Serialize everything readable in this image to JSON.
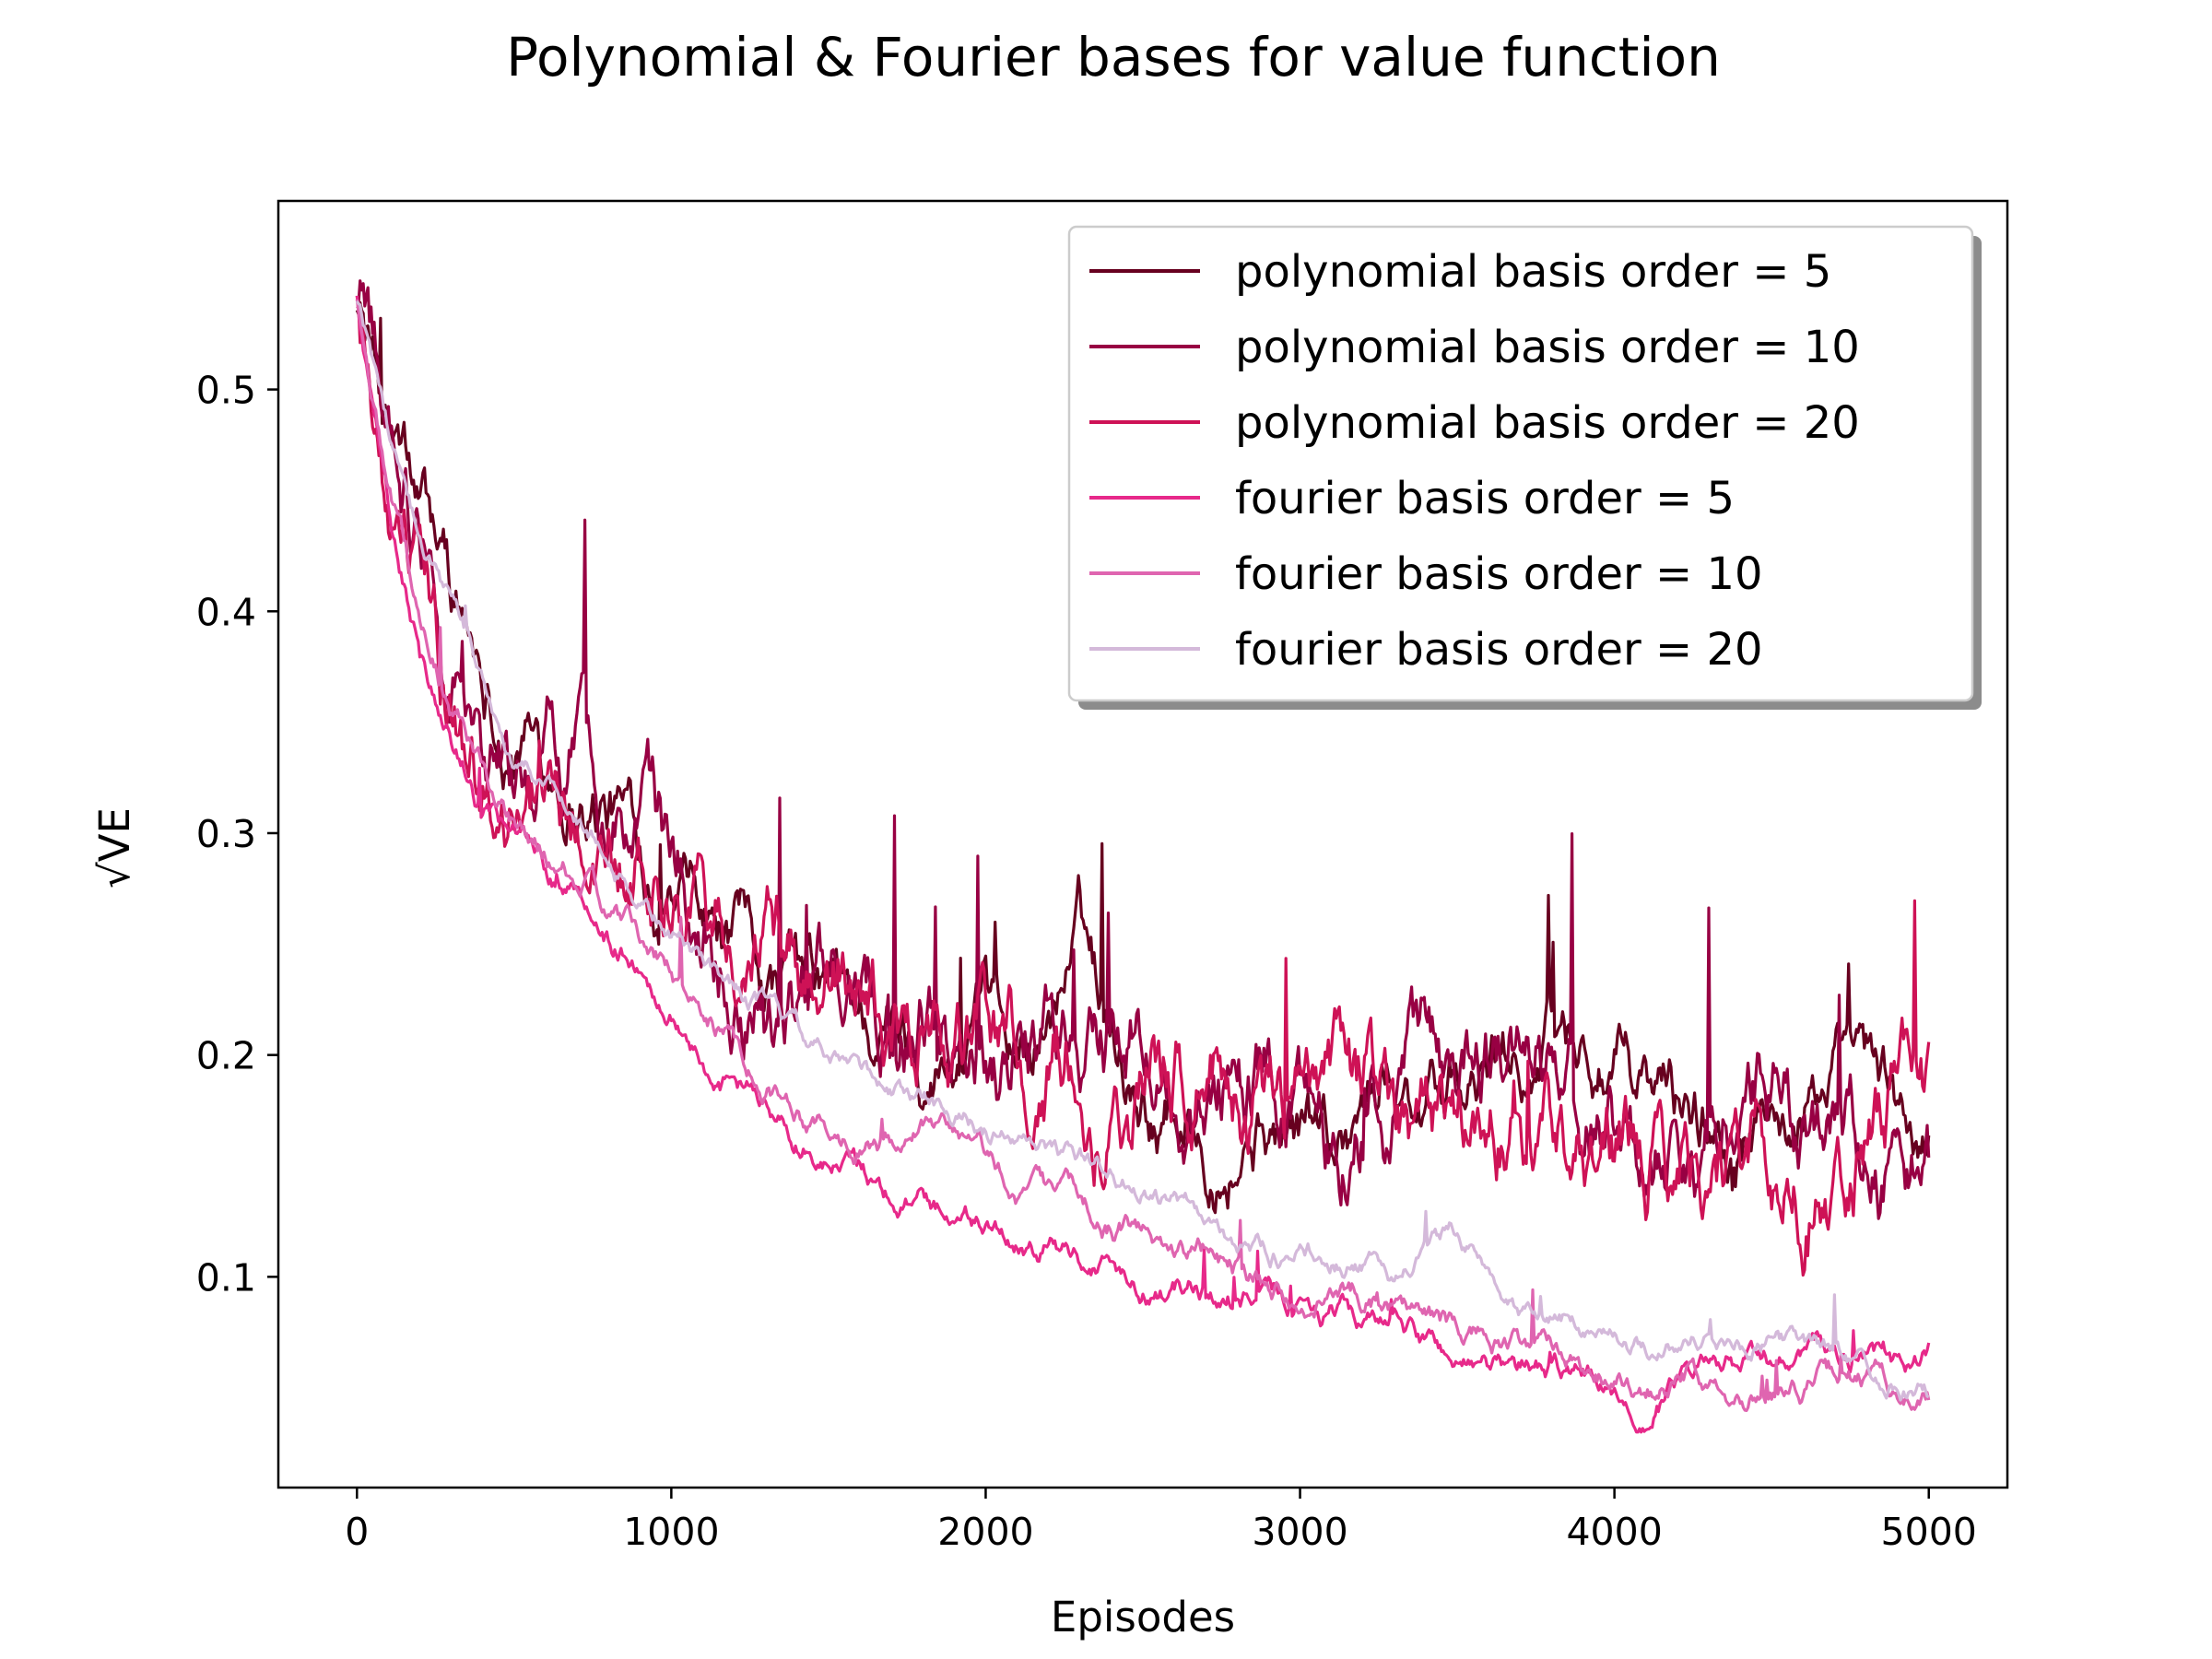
{
  "chart_data": {
    "type": "line",
    "title": "Polynomial & Fourier bases for value function",
    "xlabel": "Episodes",
    "ylabel": "√VE",
    "xlim": [
      -250,
      5250
    ],
    "ylim": [
      0.005,
      0.585
    ],
    "xticks": [
      0,
      1000,
      2000,
      3000,
      4000,
      5000
    ],
    "xtick_labels": [
      "0",
      "1000",
      "2000",
      "3000",
      "4000",
      "5000"
    ],
    "yticks": [
      0.1,
      0.2,
      0.3,
      0.4,
      0.5
    ],
    "ytick_labels": [
      "0.1",
      "0.2",
      "0.3",
      "0.4",
      "0.5"
    ],
    "grid": false,
    "legend_position": "top-right",
    "x": [
      0,
      100,
      200,
      300,
      400,
      500,
      700,
      900,
      1100,
      1300,
      1500,
      1700,
      1900,
      2100,
      2300,
      2500,
      2700,
      2900,
      3100,
      3300,
      3500,
      3700,
      3900,
      4100,
      4300,
      4500,
      4700,
      4900,
      5000
    ],
    "series": [
      {
        "name": "polynomial basis order = 5",
        "color": "#67001f",
        "noise": 0.035,
        "values": [
          0.545,
          0.48,
          0.44,
          0.41,
          0.38,
          0.35,
          0.33,
          0.3,
          0.25,
          0.23,
          0.22,
          0.21,
          0.2,
          0.19,
          0.25,
          0.19,
          0.18,
          0.17,
          0.165,
          0.2,
          0.17,
          0.2,
          0.2,
          0.18,
          0.17,
          0.16,
          0.19,
          0.16,
          0.15
        ]
      },
      {
        "name": "polynomial basis order = 10",
        "color": "#980043",
        "noise": 0.045,
        "values": [
          0.54,
          0.5,
          0.44,
          0.39,
          0.35,
          0.33,
          0.34,
          0.3,
          0.26,
          0.24,
          0.23,
          0.23,
          0.22,
          0.22,
          0.2,
          0.21,
          0.19,
          0.2,
          0.17,
          0.18,
          0.2,
          0.21,
          0.18,
          0.16,
          0.17,
          0.17,
          0.16,
          0.15,
          0.14
        ]
      },
      {
        "name": "polynomial basis order = 20",
        "color": "#ce1256",
        "noise": 0.045,
        "values": [
          0.545,
          0.46,
          0.4,
          0.36,
          0.33,
          0.31,
          0.3,
          0.28,
          0.26,
          0.24,
          0.23,
          0.22,
          0.21,
          0.2,
          0.2,
          0.19,
          0.2,
          0.18,
          0.17,
          0.18,
          0.17,
          0.18,
          0.17,
          0.16,
          0.16,
          0.15,
          0.15,
          0.2,
          0.19
        ]
      },
      {
        "name": "fourier basis order = 5",
        "color": "#e7298a",
        "noise": 0.012,
        "values": [
          0.54,
          0.45,
          0.38,
          0.34,
          0.31,
          0.295,
          0.27,
          0.24,
          0.2,
          0.175,
          0.155,
          0.14,
          0.13,
          0.118,
          0.11,
          0.1,
          0.095,
          0.09,
          0.085,
          0.075,
          0.062,
          0.058,
          0.055,
          0.045,
          0.055,
          0.06,
          0.065,
          0.06,
          0.065
        ]
      },
      {
        "name": "fourier basis order = 10",
        "color": "#df65b0",
        "noise": 0.012,
        "values": [
          0.54,
          0.46,
          0.4,
          0.36,
          0.33,
          0.3,
          0.28,
          0.25,
          0.22,
          0.19,
          0.17,
          0.16,
          0.16,
          0.14,
          0.13,
          0.12,
          0.11,
          0.1,
          0.095,
          0.09,
          0.075,
          0.065,
          0.06,
          0.055,
          0.055,
          0.05,
          0.055,
          0.05,
          0.045
        ]
      },
      {
        "name": "fourier basis order = 20",
        "color": "#d4b9da",
        "noise": 0.01,
        "values": [
          0.54,
          0.48,
          0.43,
          0.4,
          0.37,
          0.33,
          0.31,
          0.27,
          0.24,
          0.22,
          0.195,
          0.185,
          0.175,
          0.16,
          0.15,
          0.14,
          0.125,
          0.11,
          0.11,
          0.1,
          0.12,
          0.09,
          0.08,
          0.07,
          0.075,
          0.07,
          0.065,
          0.055,
          0.05
        ]
      }
    ]
  }
}
